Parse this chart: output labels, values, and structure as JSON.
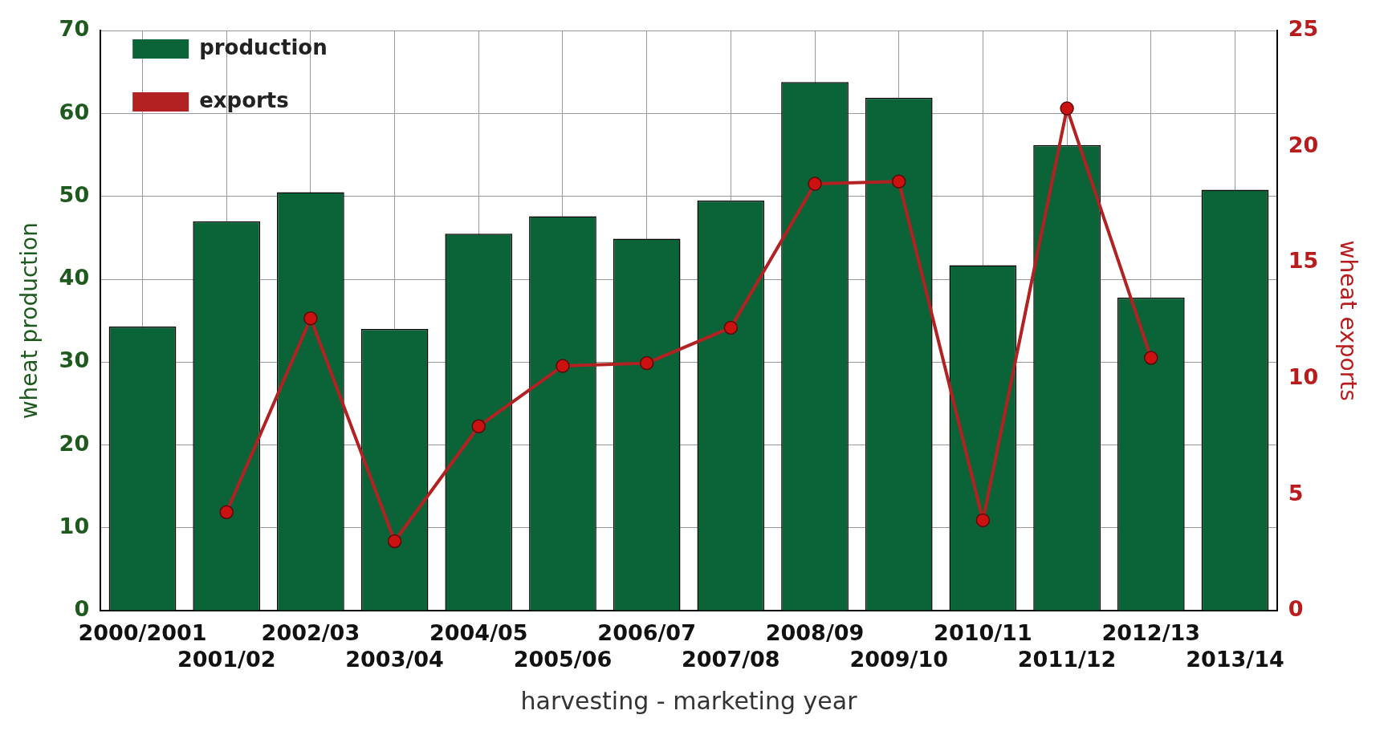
{
  "chart_data": {
    "type": "bar",
    "xlabel": "harvesting - marketing year",
    "ylabel": "wheat production",
    "y2label": "wheat exports",
    "categories": [
      "2000/2001",
      "2001/02",
      "2002/03",
      "2003/04",
      "2004/05",
      "2005/06",
      "2006/07",
      "2007/08",
      "2008/09",
      "2009/10",
      "2010/11",
      "2011/12",
      "2012/13",
      "2013/14"
    ],
    "series": [
      {
        "name": "production",
        "color": "#0b6338",
        "values": [
          34.3,
          47,
          50.5,
          34,
          45.5,
          47.6,
          44.9,
          49.5,
          63.8,
          61.9,
          41.7,
          56.2,
          37.8,
          50.8
        ]
      },
      {
        "name": "exports",
        "type": "line",
        "axis": "y2",
        "color": "#b22222",
        "values": [
          null,
          4.25,
          12.6,
          3,
          7.95,
          10.55,
          10.67,
          12.2,
          18.4,
          18.5,
          3.9,
          21.65,
          10.9,
          null
        ]
      }
    ],
    "ylim": [
      0,
      70
    ],
    "yticks": [
      0,
      10,
      20,
      30,
      40,
      50,
      60,
      70
    ],
    "y2lim": [
      0,
      25
    ],
    "y2ticks": [
      0,
      5,
      10,
      15,
      20,
      25
    ],
    "grid": true,
    "legend": "top left",
    "marker": "circle",
    "line_style": "solid"
  }
}
